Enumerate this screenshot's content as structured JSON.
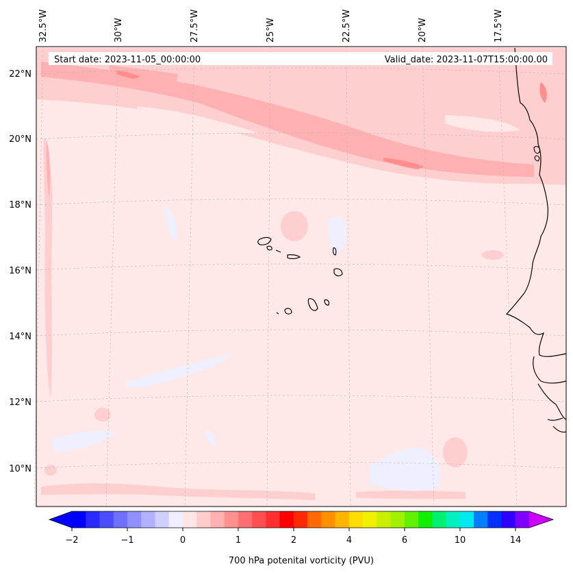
{
  "header": {
    "start_date": "Start date: 2023-11-05_00:00:00",
    "valid_date": "Valid_date: 2023-11-07T15:00:00.00"
  },
  "map": {
    "lon_labels": [
      "32.5°W",
      "30°W",
      "27.5°W",
      "25°W",
      "22.5°W",
      "20°W",
      "17.5°W"
    ],
    "lat_labels": [
      "22°N",
      "20°N",
      "18°N",
      "16°N",
      "14°N",
      "12°N",
      "10°N"
    ],
    "field_colors": {
      "background": "#ffe8e8",
      "light": "#ffcfcf",
      "medium": "#ffb0b0",
      "strong": "#ff8f8f",
      "negative": "#eef0ff"
    }
  },
  "colorbar": {
    "tick_labels": [
      "−2",
      "−1",
      "0",
      "1",
      "2",
      "4",
      "6",
      "10",
      "14"
    ],
    "label": "700 hPa potenital vorticity (PVU)",
    "colors": [
      "#0000ff",
      "#2a2aff",
      "#4c4cff",
      "#7070ff",
      "#9090ff",
      "#b0b0ff",
      "#d0d0ff",
      "#eeeeff",
      "#ffe6e6",
      "#ffcccc",
      "#ffb0b0",
      "#ff9090",
      "#ff7070",
      "#ff5050",
      "#ff3030",
      "#ff0000",
      "#ff2a00",
      "#ff6a00",
      "#ff9000",
      "#ffb400",
      "#ffdc00",
      "#f0f000",
      "#c8f000",
      "#a0f000",
      "#60f000",
      "#10f000",
      "#00f070",
      "#00f0c0",
      "#00e8f0",
      "#0080ff",
      "#0030ff",
      "#3000ff",
      "#8000ff"
    ],
    "end_color_left": "#0000ff",
    "end_color_right": "#cc00ff"
  }
}
